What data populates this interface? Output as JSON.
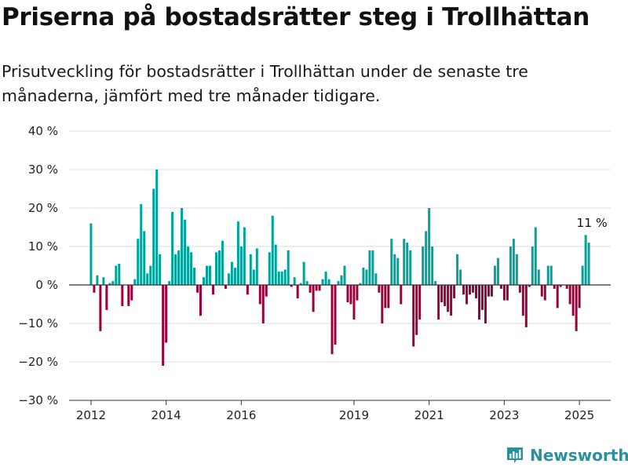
{
  "header": {
    "title": "Priserna på bostadsrätter steg i Trollhättan",
    "subtitle": "Prisutveckling för bostadsrätter i Trollhättan under de senaste tre månaderna, jämfört med tre månader tidigare."
  },
  "brand": {
    "name": "Newsworthy",
    "icon": "bar-chart-logo-icon"
  },
  "colors": {
    "positive": "#00a39a",
    "negative": "#9b003d",
    "grid": "#dddddd",
    "axis": "#333333"
  },
  "chart_data": {
    "type": "bar",
    "title": "Priserna på bostadsrätter steg i Trollhättan",
    "xlabel": "",
    "ylabel": "",
    "unit": "%",
    "ylim": [
      -30,
      40
    ],
    "yticks": [
      {
        "value": 40,
        "label": "40 %"
      },
      {
        "value": 30,
        "label": "30 %"
      },
      {
        "value": 20,
        "label": "20 %"
      },
      {
        "value": 10,
        "label": "10 %"
      },
      {
        "value": 0,
        "label": "0 %"
      },
      {
        "value": -10,
        "label": "−10 %"
      },
      {
        "value": -20,
        "label": "−20 %"
      },
      {
        "value": -30,
        "label": "−30 %"
      }
    ],
    "xlim": [
      "2011-06",
      "2025-11"
    ],
    "xticks": [
      {
        "date": "2012-01",
        "label": "2012"
      },
      {
        "date": "2014-01",
        "label": "2014"
      },
      {
        "date": "2016-01",
        "label": "2016"
      },
      {
        "date": "2019-01",
        "label": "2019"
      },
      {
        "date": "2021-01",
        "label": "2021"
      },
      {
        "date": "2023-01",
        "label": "2023"
      },
      {
        "date": "2025-01",
        "label": "2025"
      }
    ],
    "grid": true,
    "annotation": {
      "date": "2025-05",
      "value": 11,
      "label": "11 %"
    },
    "series": [
      {
        "start": "2012-01",
        "frequency": "monthly",
        "values": [
          16,
          -2,
          2.5,
          -12,
          2,
          -6.5,
          0.5,
          1,
          5,
          5.5,
          -5.5,
          0,
          -5.5,
          -4,
          1.5,
          12,
          21,
          14,
          3,
          5,
          25,
          30,
          8,
          -21,
          -15,
          1,
          19,
          8,
          9,
          20,
          17,
          10,
          8.5,
          4.5,
          -2,
          -8,
          2,
          5,
          5,
          -2.5,
          8.5,
          9,
          11.5,
          -1,
          3,
          6,
          4.5,
          16.5,
          10,
          15,
          -2.5,
          8,
          4,
          9.5,
          -5,
          -10,
          -3,
          8.5,
          18,
          10.5,
          3.5,
          3.5,
          4,
          9,
          -0.5,
          2,
          -3.5,
          0.5,
          6,
          1,
          -2,
          -7,
          -1.5,
          -1.5,
          1.5,
          3.5,
          1.5,
          -18,
          -15.5,
          1,
          2.5,
          5,
          -4.5,
          -5,
          -9,
          -4,
          0.5,
          4.5,
          4,
          9,
          9,
          3,
          -2,
          -10,
          -6,
          -6,
          12,
          8,
          7,
          -5,
          12,
          11,
          9,
          -16,
          -13,
          -9,
          10,
          14,
          20,
          10,
          1,
          -9,
          -4.5,
          -5.5,
          -7,
          -8,
          -3.5,
          8,
          4,
          -2.5,
          -5,
          -2.5,
          -2,
          -3.5,
          -9,
          -6.5,
          -10,
          -3,
          -3,
          5,
          7,
          -1,
          -4,
          -4,
          10,
          12,
          8,
          -2,
          -8,
          -11,
          -0.5,
          10,
          15,
          4,
          -3,
          -4,
          5,
          5,
          -1,
          -6,
          -0.5,
          0,
          -1,
          -5,
          -8,
          -12,
          -6,
          5,
          13,
          11
        ]
      }
    ]
  }
}
